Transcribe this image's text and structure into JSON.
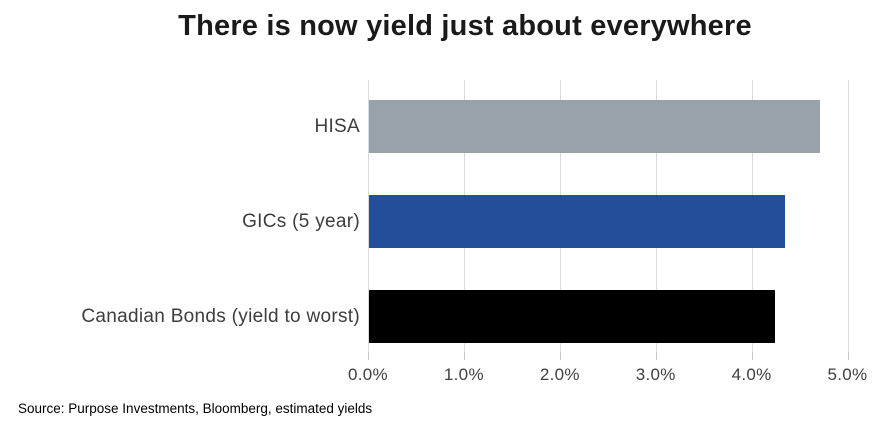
{
  "title": "There is now yield just about everywhere",
  "source_note": "Source: Purpose Investments, Bloomberg, estimated yields",
  "chart_data": {
    "type": "bar",
    "orientation": "horizontal",
    "title": "There is now yield just about everywhere",
    "categories": [
      "HISA",
      "GICs (5 year)",
      "Canadian Bonds (yield to worst)"
    ],
    "series": [
      {
        "name": "Estimated yield",
        "values": [
          4.7,
          4.33,
          4.23
        ]
      }
    ],
    "unit": "%",
    "xlabel": "",
    "ylabel": "",
    "xlim": [
      0,
      5
    ],
    "x_tick_labels": [
      "0.0%",
      "1.0%",
      "2.0%",
      "3.0%",
      "4.0%",
      "5.0%"
    ],
    "x_tick_values": [
      0,
      1,
      2,
      3,
      4,
      5
    ],
    "grid": "vertical-gridlines-on",
    "legend": "none",
    "bar_colors": [
      "#98A2AB",
      "#234F9A",
      "#000000"
    ]
  },
  "colors": {
    "background": "#FFFFFF",
    "gridline": "#D9D9D9",
    "tick_mark": "#C9C9C9",
    "title_text": "#1A1A1A",
    "category_text": "#3D3D3D",
    "axis_text": "#404040",
    "bar_hisa": "#98A2AB",
    "bar_gic": "#234F9A",
    "bar_bonds": "#000000"
  }
}
